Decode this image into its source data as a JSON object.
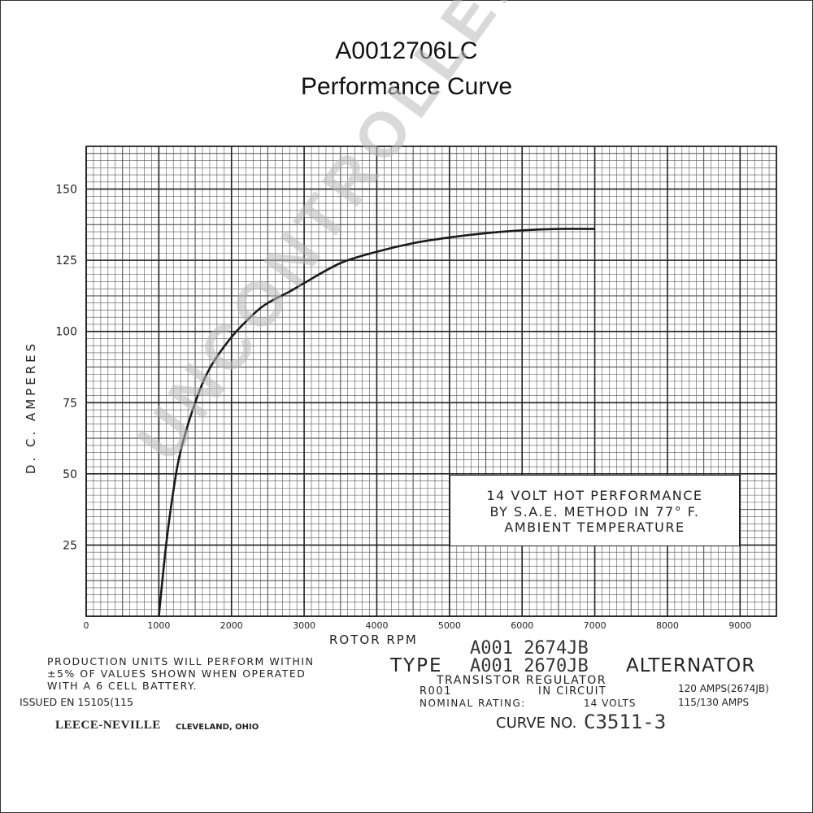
{
  "title": "A0012706LC",
  "subtitle": "Performance Curve",
  "chart_data": {
    "type": "line",
    "xlabel": "ROTOR RPM",
    "ylabel": "D. C. AMPERES",
    "xlim": [
      0,
      9500
    ],
    "ylim": [
      0,
      165
    ],
    "x_ticks": [
      0,
      1000,
      2000,
      3000,
      4000,
      5000,
      6000,
      7000,
      8000,
      9000
    ],
    "x_tick_labels": [
      "0",
      "1000",
      "2000",
      "3000",
      "4000",
      "5000",
      "6000",
      "7000",
      "8000",
      "9000"
    ],
    "y_ticks": [
      25,
      50,
      75,
      100,
      125,
      150
    ],
    "grid": true,
    "series": [
      {
        "x": [
          1000,
          1100,
          1200,
          1300,
          1500,
          1700,
          2000,
          2300,
          2500,
          2800,
          3000,
          3500,
          4000,
          4500,
          5000,
          5500,
          6000,
          6500,
          7000
        ],
        "y": [
          0,
          25,
          44,
          58,
          75,
          87,
          98,
          106,
          110,
          114,
          117,
          124,
          128,
          131,
          133,
          134.5,
          135.5,
          136,
          136
        ]
      }
    ],
    "annotation": [
      "14 VOLT HOT PERFORMANCE",
      "BY S.A.E. METHOD IN 77° F.",
      "AMBIENT TEMPERATURE"
    ]
  },
  "footer": {
    "production_note": [
      "PRODUCTION UNITS WILL PERFORM WITHIN",
      "±5% OF VALUES SHOWN WHEN OPERATED",
      "WITH A 6 CELL BATTERY."
    ],
    "issued": "ISSUED EN 15105(115",
    "brand": "LEECE-NEVILLE",
    "location": "CLEVELAND, OHIO",
    "part_numbers": [
      "A001 2674JB",
      "A001 2670JB"
    ],
    "type_label": "TYPE",
    "alternator_label": "ALTERNATOR",
    "regulator_line": "TRANSISTOR REGULATOR",
    "regulator_code": "R001",
    "in_circuit": "IN CIRCUIT",
    "nominal_rating_label": "NOMINAL RATING:",
    "nominal_volts": "14 VOLTS",
    "rating_1": "120 AMPS(2674JB)",
    "rating_2": "115/130 AMPS",
    "curve_no_label": "CURVE NO.",
    "curve_no_value": "C3511-3"
  },
  "watermark": "UNCONTROLLED COPY"
}
